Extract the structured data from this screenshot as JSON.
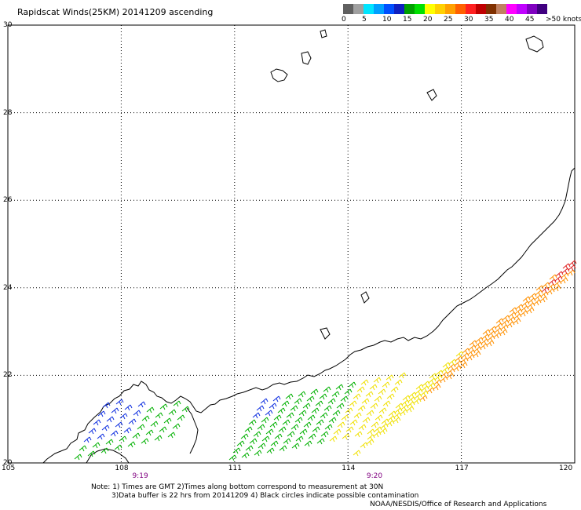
{
  "title": "Rapidscat Winds(25KM) 20141209 ascending",
  "legend": {
    "colors": [
      "#606060",
      "#a0a0a0",
      "#00e5ff",
      "#00a0ff",
      "#0050ff",
      "#1020c0",
      "#00a000",
      "#00e000",
      "#ffff00",
      "#ffd000",
      "#ffa000",
      "#ff6000",
      "#ff2020",
      "#c00000",
      "#803000",
      "#c08060",
      "#ff00ff",
      "#c000ff",
      "#8000c0",
      "#400080"
    ],
    "labels": [
      "0",
      "5",
      "10",
      "15",
      "20",
      "25",
      "30",
      "35",
      "40",
      "45",
      ">50 knots"
    ]
  },
  "map": {
    "lon_range": [
      105,
      120
    ],
    "lat_range": [
      20,
      30
    ],
    "lon_ticks": [
      "105",
      "108",
      "111",
      "114",
      "117",
      "120"
    ],
    "lat_ticks": [
      "30",
      "28",
      "26",
      "24",
      "22",
      "20"
    ],
    "times": [
      {
        "lon": 108.5,
        "label": "9:19"
      },
      {
        "lon": 114.7,
        "label": "9:20"
      }
    ],
    "wind_colors": {
      "blue": "#1030e0",
      "green": "#00b000",
      "yellow": "#f0e000",
      "orange": "#ff9000",
      "red": "#e02020"
    }
  },
  "notes": [
    "Note: 1) Times are GMT 2)Times along bottom correspond to measurement at 30N",
    "3)Data buffer is 22 hrs from 20141209 4) Black circles indicate possible contamination",
    "NOAA/NESDIS/Office of Research and Applications"
  ]
}
